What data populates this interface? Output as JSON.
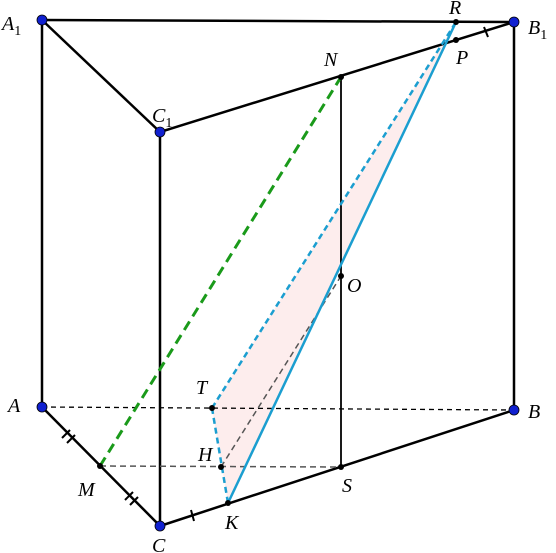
{
  "points": [
    {
      "name": "A",
      "sub": "1"
    },
    {
      "name": "B",
      "sub": "1"
    },
    {
      "name": "C",
      "sub": "1"
    },
    {
      "name": "A"
    },
    {
      "name": "B"
    },
    {
      "name": "C"
    },
    {
      "name": "R"
    },
    {
      "name": "P"
    },
    {
      "name": "N"
    },
    {
      "name": "O"
    },
    {
      "name": "T"
    },
    {
      "name": "H"
    },
    {
      "name": "S"
    },
    {
      "name": "M"
    },
    {
      "name": "K"
    }
  ]
}
